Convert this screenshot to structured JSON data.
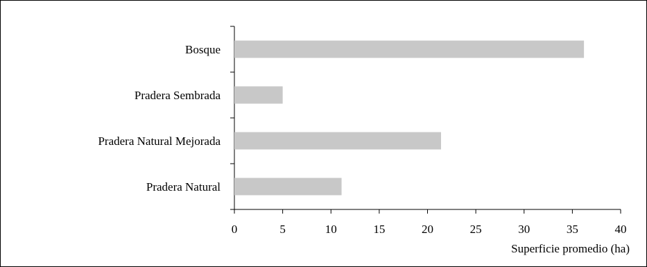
{
  "chart_data": {
    "type": "bar",
    "orientation": "horizontal",
    "categories": [
      "Bosque",
      "Pradera Sembrada",
      "Pradera Natural Mejorada",
      "Pradera Natural"
    ],
    "values": [
      36.2,
      5.0,
      21.4,
      11.1
    ],
    "xlabel": "Superficie promedio (ha)",
    "ylabel": "",
    "title": "",
    "xlim": [
      0,
      40
    ],
    "xticks": [
      0,
      5,
      10,
      15,
      20,
      25,
      30,
      35,
      40
    ],
    "bar_color": "#c8c8c8",
    "axis_color": "#000000",
    "grid": false,
    "legend": "none"
  }
}
